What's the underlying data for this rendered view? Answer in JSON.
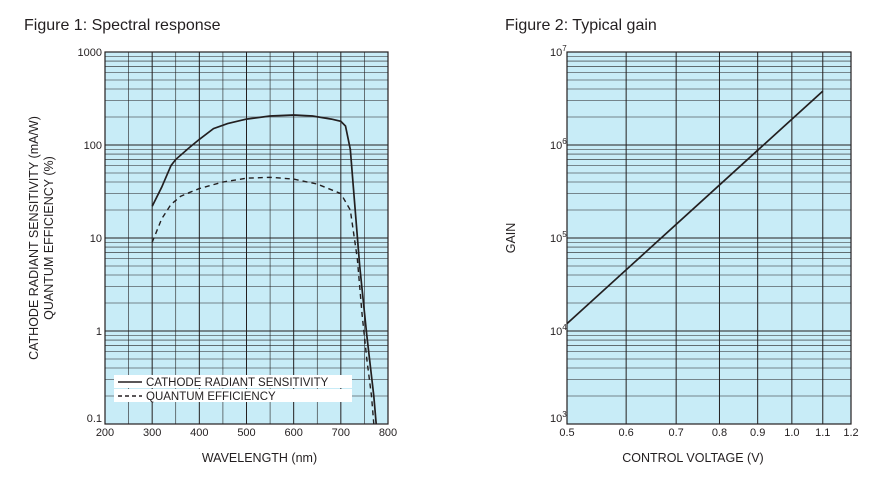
{
  "titles": {
    "fig1": "Figure 1: Spectral response",
    "fig2": "Figure 2: Typical gain"
  },
  "colors": {
    "plot_bg": "#c8ecf7",
    "grid": "#231f20",
    "line": "#231f20"
  },
  "chart_data": [
    {
      "type": "line",
      "title": "Figure 1: Spectral response",
      "xlabel": "WAVELENGTH (nm)",
      "ylabel": [
        "CATHODE RADIANT SENSITIVITY (mA/W)",
        "QUANTUM EFFICIENCY (%)"
      ],
      "xlim": [
        200,
        800
      ],
      "ylim": [
        0.1,
        1000
      ],
      "yscale": "log",
      "grid": true,
      "legend_position": "bottom-left",
      "x_ticks": [
        "200",
        "300",
        "400",
        "500",
        "600",
        "700",
        "800"
      ],
      "y_ticks": [
        "0.1",
        "1",
        "10",
        "100",
        "1000"
      ],
      "series": [
        {
          "name": "CATHODE RADIANT SENSITIVITY",
          "style": "solid",
          "x": [
            300,
            320,
            340,
            350,
            380,
            400,
            430,
            460,
            500,
            550,
            600,
            640,
            680,
            700,
            710,
            720,
            740,
            755,
            770,
            775
          ],
          "y": [
            22,
            35,
            60,
            70,
            95,
            115,
            150,
            170,
            190,
            205,
            210,
            205,
            190,
            180,
            160,
            90,
            5,
            0.9,
            0.2,
            0.1
          ]
        },
        {
          "name": "QUANTUM EFFICIENCY",
          "style": "dashed",
          "x": [
            300,
            320,
            340,
            360,
            380,
            400,
            450,
            500,
            550,
            600,
            650,
            700,
            720,
            735,
            745,
            755,
            765,
            770
          ],
          "y": [
            9,
            16,
            23,
            28,
            31,
            34,
            40,
            44,
            45,
            43,
            38,
            30,
            20,
            6,
            1.5,
            0.5,
            0.2,
            0.1
          ]
        }
      ]
    },
    {
      "type": "line",
      "title": "Figure 2: Typical gain",
      "xlabel": "CONTROL VOLTAGE (V)",
      "ylabel": "GAIN",
      "xscale": "log",
      "yscale": "log",
      "xlim": [
        0.5,
        1.2
      ],
      "ylim": [
        1000,
        10000000
      ],
      "grid": true,
      "x_ticks": [
        "0.5",
        "0.6",
        "0.7",
        "0.8",
        "0.9",
        "1.0",
        "1.1",
        "1.2"
      ],
      "y_ticks": [
        {
          "base": "10",
          "exp": "3"
        },
        {
          "base": "10",
          "exp": "4"
        },
        {
          "base": "10",
          "exp": "5"
        },
        {
          "base": "10",
          "exp": "6"
        },
        {
          "base": "10",
          "exp": "7"
        }
      ],
      "series": [
        {
          "style": "solid",
          "x": [
            0.5,
            1.1
          ],
          "y": [
            12000,
            3800000
          ]
        }
      ]
    }
  ]
}
